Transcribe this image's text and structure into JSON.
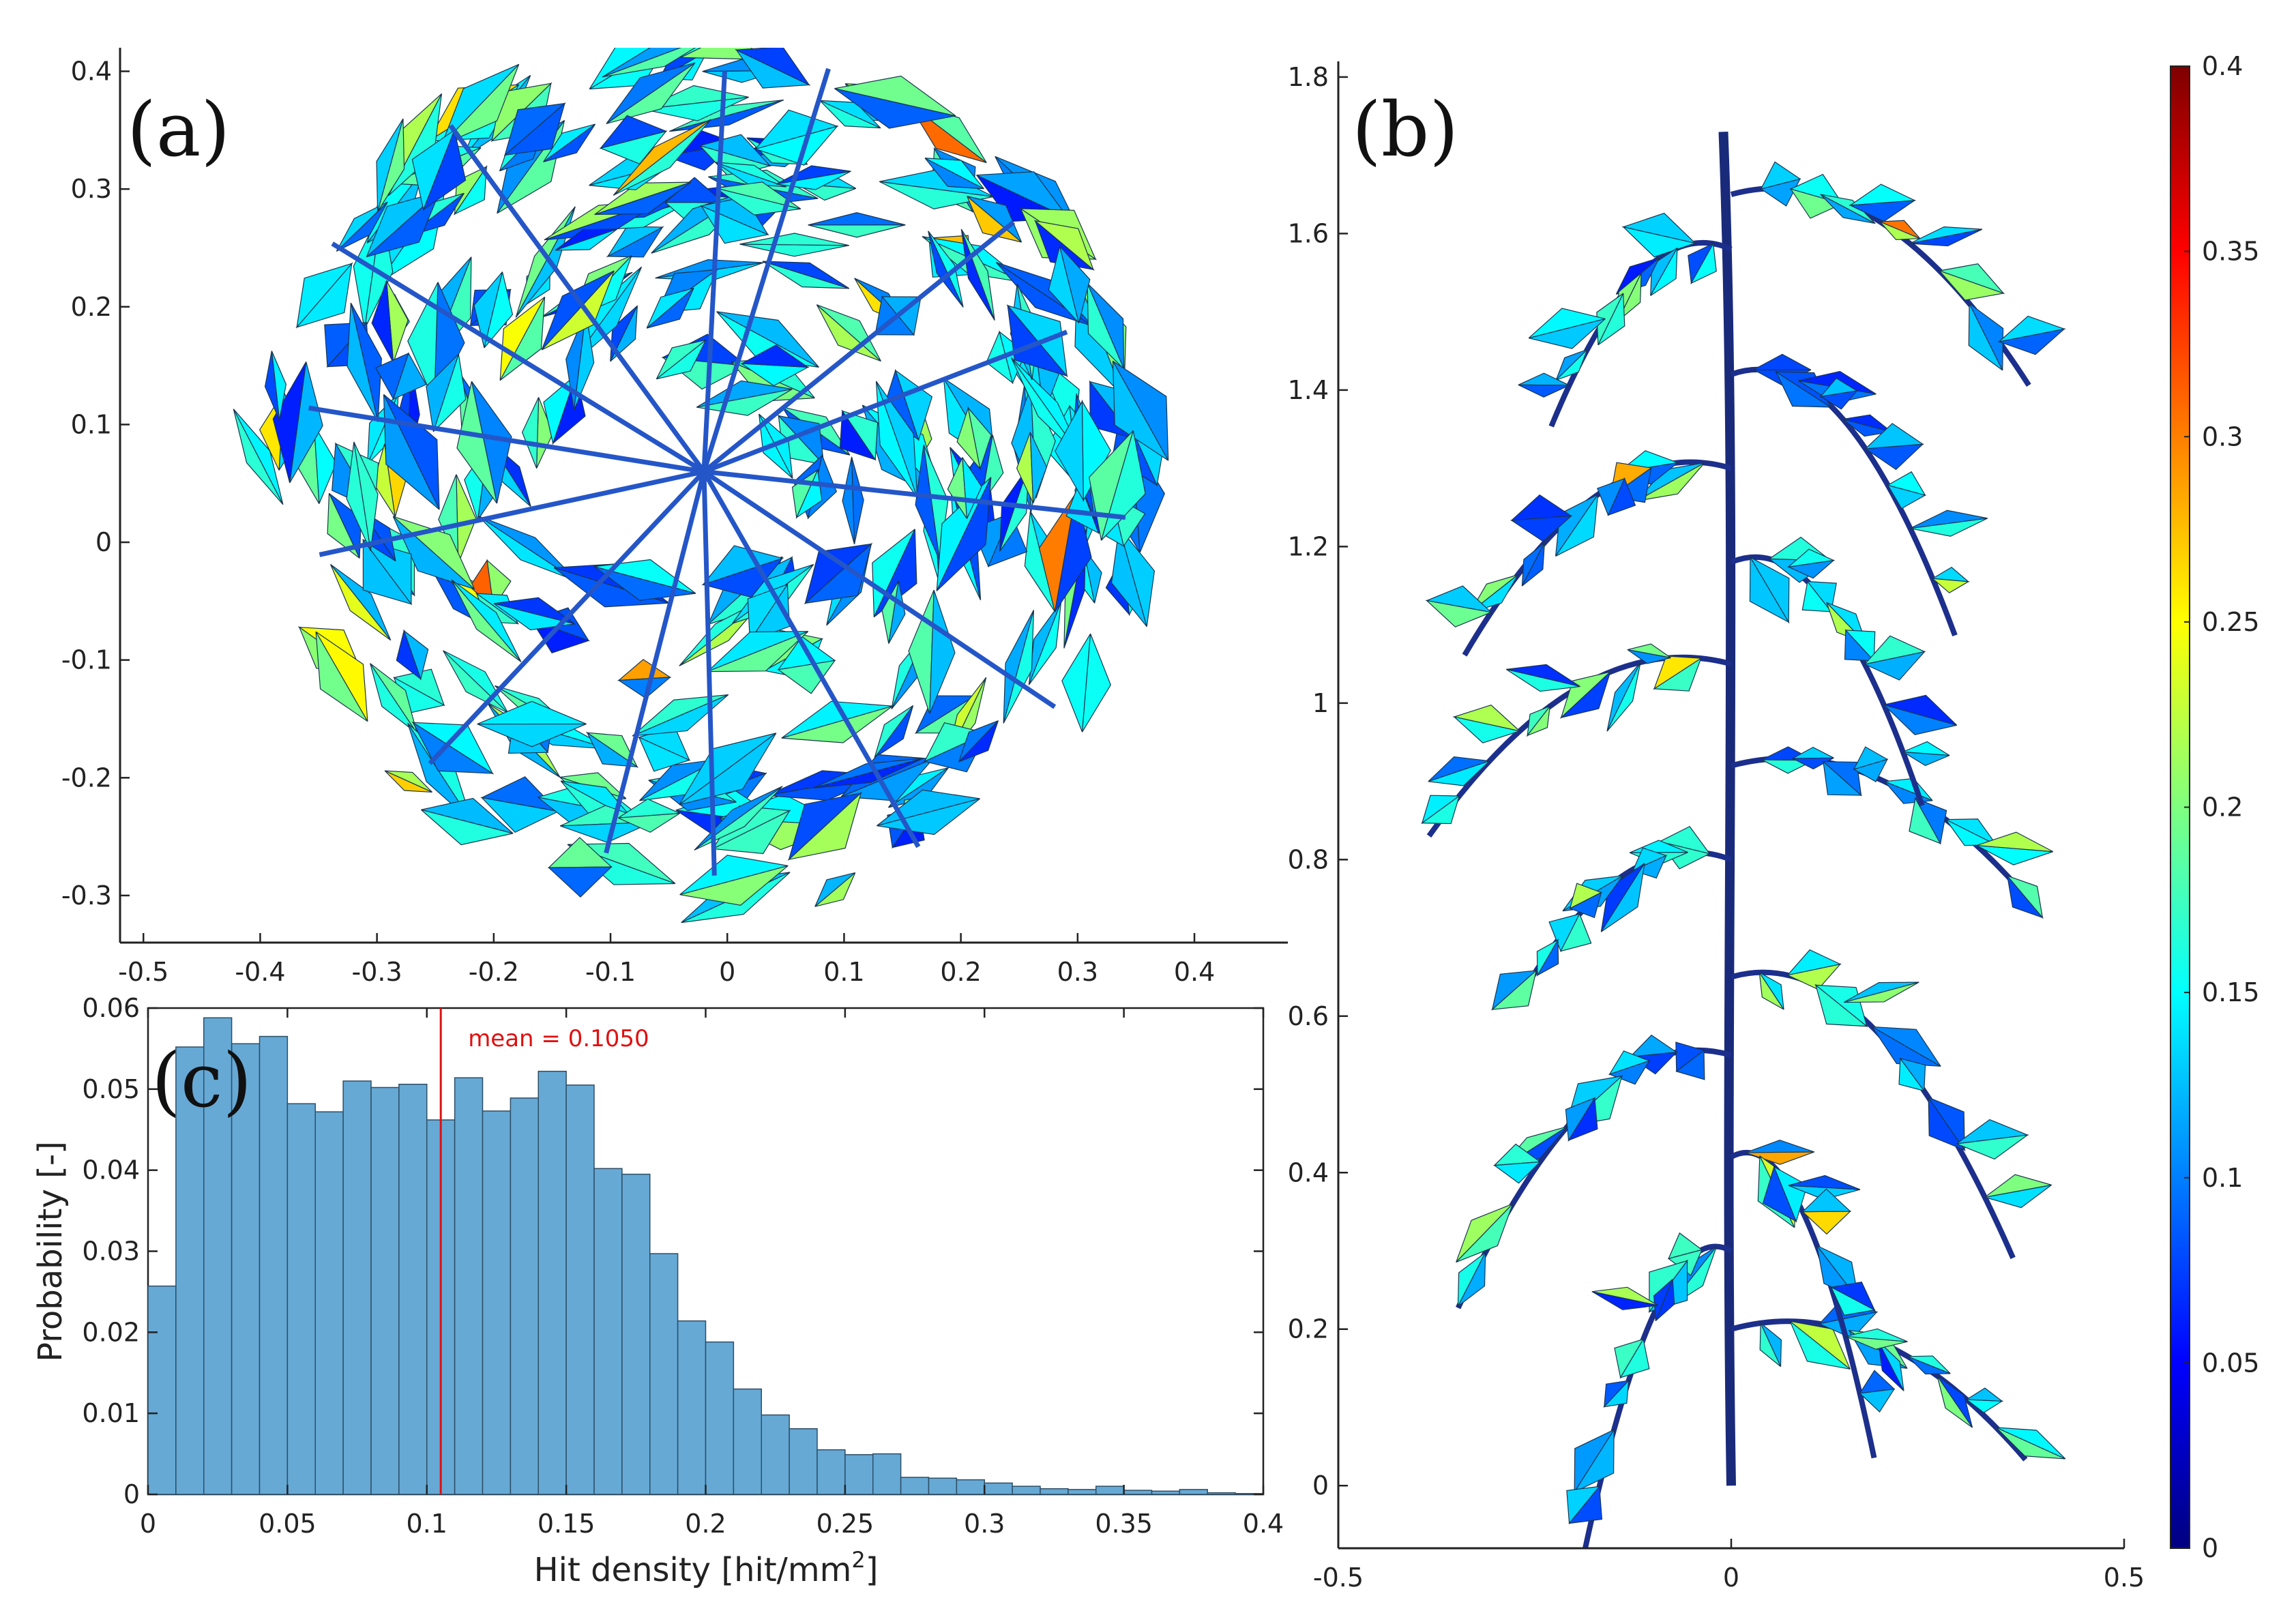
{
  "colors": {
    "bar": "#66a9d5",
    "bar_edge": "#2e4e66",
    "mean_line": "#e01010",
    "axis": "#222222"
  },
  "colormap_stops": [
    "#00007f",
    "#0000ff",
    "#007fff",
    "#00ffff",
    "#7fff7f",
    "#ffff00",
    "#ff7f00",
    "#ff0000",
    "#7f0000"
  ],
  "chart_data": [
    {
      "id": "a",
      "type": "scatter",
      "panel_label": "(a)",
      "title": "",
      "xlim": [
        -0.52,
        0.48
      ],
      "ylim": [
        -0.34,
        0.42
      ],
      "x_ticks": [
        -0.5,
        -0.4,
        -0.3,
        -0.2,
        -0.1,
        0,
        0.1,
        0.2,
        0.3,
        0.4
      ],
      "y_ticks": [
        -0.3,
        -0.2,
        -0.1,
        0,
        0.1,
        0.2,
        0.3,
        0.4
      ],
      "x_tick_labels": [
        "-0.5",
        "-0.4",
        "-0.3",
        "-0.2",
        "-0.1",
        "0",
        "0.1",
        "0.2",
        "0.3",
        "0.4"
      ],
      "y_tick_labels": [
        "-0.3",
        "-0.2",
        "-0.1",
        "0",
        "0.1",
        "0.2",
        "0.3",
        "0.4"
      ],
      "description_units": "top view of plant mesh, colored by hit density"
    },
    {
      "id": "b",
      "type": "scatter",
      "panel_label": "(b)",
      "xlim": [
        -0.5,
        0.5
      ],
      "ylim": [
        -0.08,
        1.82
      ],
      "x_ticks": [
        -0.5,
        0,
        0.5
      ],
      "y_ticks": [
        0,
        0.2,
        0.4,
        0.6,
        0.8,
        1,
        1.2,
        1.4,
        1.6,
        1.8
      ],
      "x_tick_labels": [
        "-0.5",
        "0",
        "0.5"
      ],
      "y_tick_labels": [
        "0",
        "0.2",
        "0.4",
        "0.6",
        "0.8",
        "1",
        "1.2",
        "1.4",
        "1.6",
        "1.8"
      ]
    },
    {
      "id": "colorbar",
      "type": "heatmap",
      "range": [
        0,
        0.4
      ],
      "ticks": [
        0,
        0.05,
        0.1,
        0.15,
        0.2,
        0.25,
        0.3,
        0.35,
        0.4
      ],
      "tick_labels": [
        "0",
        "0.05",
        "0.1",
        "0.15",
        "0.2",
        "0.25",
        "0.3",
        "0.35",
        "0.4"
      ]
    },
    {
      "id": "c",
      "type": "bar",
      "panel_label": "(c)",
      "xlabel_main": "Hit density [hit/mm",
      "xlabel_sup": "2",
      "xlabel_end": "]",
      "ylabel": "Probability [-]",
      "xlim": [
        0,
        0.4
      ],
      "ylim": [
        0,
        0.06
      ],
      "bin_width": 0.01,
      "values": [
        0.0257,
        0.0552,
        0.0588,
        0.0556,
        0.0565,
        0.0482,
        0.0472,
        0.051,
        0.0502,
        0.0506,
        0.0462,
        0.0514,
        0.0473,
        0.0489,
        0.0522,
        0.0505,
        0.0402,
        0.0395,
        0.0297,
        0.0214,
        0.0188,
        0.013,
        0.0098,
        0.0081,
        0.0055,
        0.0049,
        0.005,
        0.0021,
        0.002,
        0.0018,
        0.0014,
        0.001,
        0.0007,
        0.0006,
        0.001,
        0.0005,
        0.0004,
        0.0006,
        0.0002,
        0.0001
      ],
      "mean": 0.105,
      "mean_label": "mean = 0.1050",
      "x_ticks": [
        0,
        0.05,
        0.1,
        0.15,
        0.2,
        0.25,
        0.3,
        0.35,
        0.4
      ],
      "x_tick_labels": [
        "0",
        "0.05",
        "0.1",
        "0.15",
        "0.2",
        "0.25",
        "0.3",
        "0.35",
        "0.4"
      ],
      "y_ticks": [
        0,
        0.01,
        0.02,
        0.03,
        0.04,
        0.05,
        0.06
      ],
      "y_tick_labels": [
        "0",
        "0.01",
        "0.02",
        "0.03",
        "0.04",
        "0.05",
        "0.06"
      ]
    }
  ]
}
